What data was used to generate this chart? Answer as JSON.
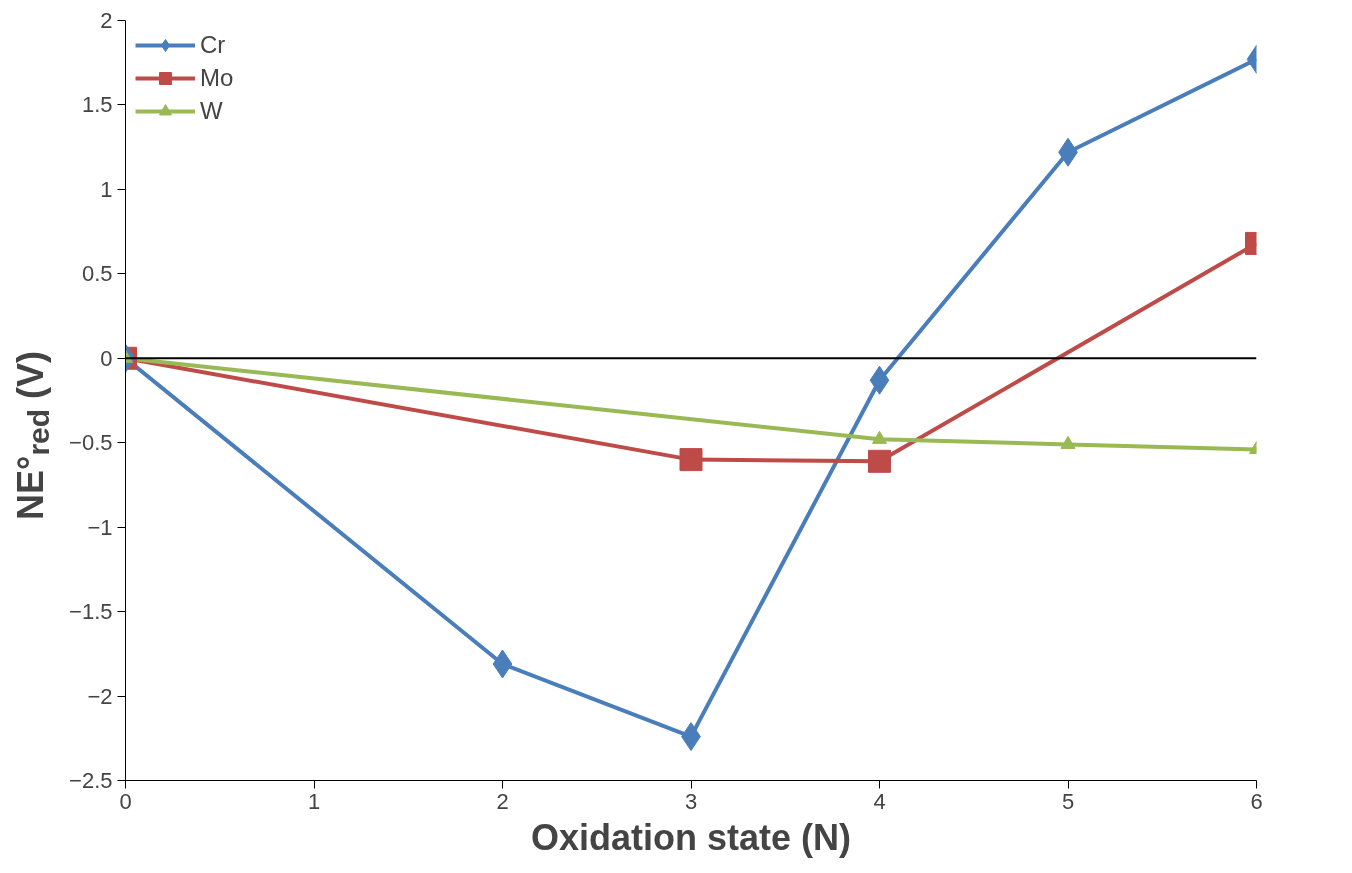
{
  "chart_data": {
    "type": "line",
    "xlabel": "Oxidation state (N)",
    "ylabel": "NE°$_{red}$ (V)",
    "xlim": [
      0,
      6
    ],
    "xticks": [
      0,
      1,
      2,
      3,
      4,
      5,
      6
    ],
    "ylim": [
      -2.5,
      2
    ],
    "yticks": [
      -2.5,
      -2,
      -1.5,
      -1,
      -0.5,
      0,
      0.5,
      1,
      1.5,
      2
    ],
    "grid": false,
    "legend": "top left",
    "line_style": "solid",
    "ref_lines": [
      {
        "axis": "y",
        "value": 0,
        "color": "#000000"
      }
    ],
    "series": [
      {
        "name": "Cr",
        "color": "#4a7ebb",
        "marker": "diamond",
        "x": [
          0,
          2,
          3,
          4,
          5,
          6
        ],
        "values": [
          0,
          -1.81,
          -2.24,
          -0.13,
          1.22,
          1.77
        ]
      },
      {
        "name": "Mo",
        "color": "#be4b48",
        "marker": "square",
        "x": [
          0,
          3,
          4,
          6
        ],
        "values": [
          0,
          -0.6,
          -0.61,
          0.68
        ]
      },
      {
        "name": "W",
        "color": "#98b954",
        "marker": "triangle",
        "x": [
          0,
          4,
          5,
          6
        ],
        "values": [
          0,
          -0.48,
          -0.51,
          -0.54
        ]
      }
    ]
  }
}
